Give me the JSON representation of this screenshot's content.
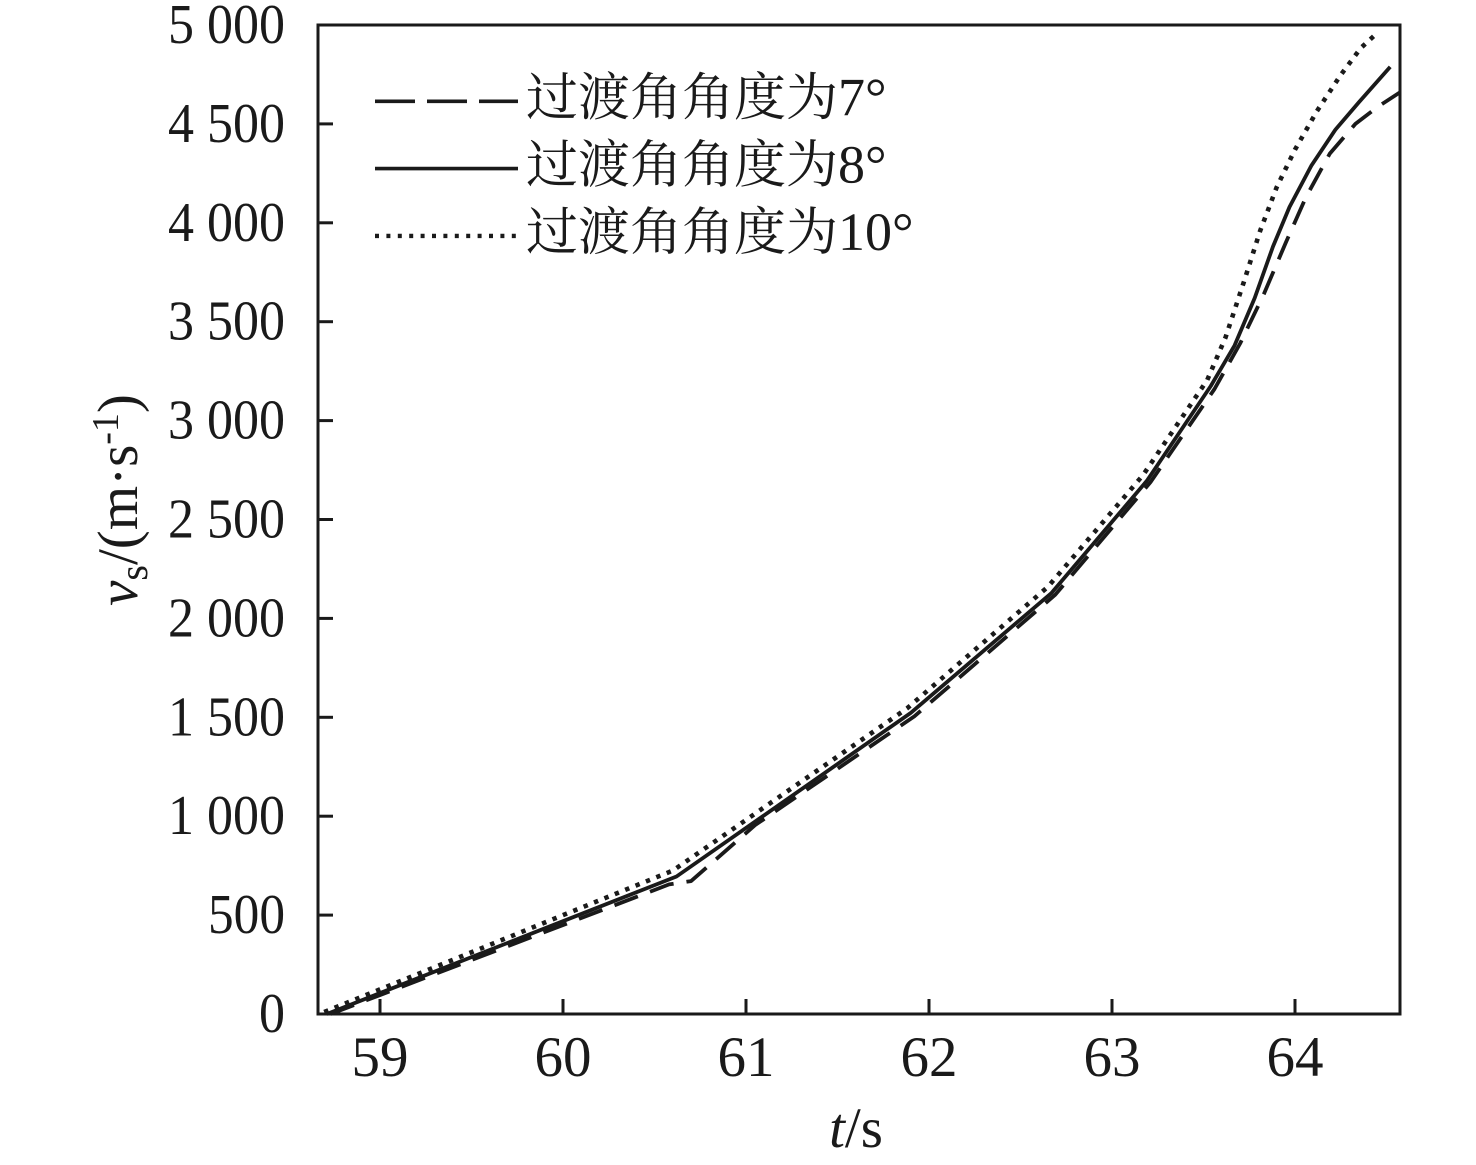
{
  "figure": {
    "background": "#ffffff",
    "ink_color": "#1a1a1a"
  },
  "chart_data": {
    "type": "line",
    "title": "",
    "xlabel_parts": {
      "var": "t",
      "unit": "/s"
    },
    "ylabel_parts": {
      "var": "v",
      "sub": "s",
      "mid": "/(m·s",
      "sup": "-1",
      "tail": ")"
    },
    "xlim": [
      58.6612,
      64.5738
    ],
    "ylim": [
      0,
      5000
    ],
    "xticks": [
      {
        "v": 59,
        "label": "59"
      },
      {
        "v": 60,
        "label": "60"
      },
      {
        "v": 61,
        "label": "61"
      },
      {
        "v": 62,
        "label": "62"
      },
      {
        "v": 63,
        "label": "63"
      },
      {
        "v": 64,
        "label": "64"
      }
    ],
    "yticks": [
      {
        "v": 0,
        "label": "0"
      },
      {
        "v": 500,
        "label": "500"
      },
      {
        "v": 1000,
        "label": "1 000"
      },
      {
        "v": 1500,
        "label": "1 500"
      },
      {
        "v": 2000,
        "label": "2 000"
      },
      {
        "v": 2500,
        "label": "2 500"
      },
      {
        "v": 3000,
        "label": "3 000"
      },
      {
        "v": 3500,
        "label": "3 500"
      },
      {
        "v": 4000,
        "label": "4 000"
      },
      {
        "v": 4500,
        "label": "4 500"
      },
      {
        "v": 5000,
        "label": "5 000"
      }
    ],
    "grid": false,
    "legend_position": "upper-left-inside",
    "series": [
      {
        "id": "deg7",
        "name": "过渡角角度为7°",
        "style": "dashed",
        "points": [
          [
            58.73,
            0
          ],
          [
            60.58,
            655
          ],
          [
            60.7,
            672
          ],
          [
            61.05,
            955
          ],
          [
            61.92,
            1505
          ],
          [
            62.69,
            2120
          ],
          [
            63.21,
            2688
          ],
          [
            63.56,
            3160
          ],
          [
            63.7,
            3390
          ],
          [
            63.83,
            3640
          ],
          [
            63.95,
            3900
          ],
          [
            64.06,
            4130
          ],
          [
            64.19,
            4350
          ],
          [
            64.33,
            4500
          ],
          [
            64.45,
            4585
          ],
          [
            64.574,
            4660
          ]
        ]
      },
      {
        "id": "deg8",
        "name": "过渡角角度为8°",
        "style": "solid",
        "points": [
          [
            58.71,
            0
          ],
          [
            60.62,
            695
          ],
          [
            61.9,
            1522
          ],
          [
            62.67,
            2129
          ],
          [
            63.19,
            2695
          ],
          [
            63.54,
            3175
          ],
          [
            63.67,
            3380
          ],
          [
            63.78,
            3620
          ],
          [
            63.88,
            3880
          ],
          [
            63.97,
            4080
          ],
          [
            64.09,
            4290
          ],
          [
            64.22,
            4470
          ],
          [
            64.35,
            4610
          ],
          [
            64.52,
            4788
          ]
        ]
      },
      {
        "id": "deg10",
        "name": "过渡角角度为10°",
        "style": "dotted",
        "points": [
          [
            58.695,
            10
          ],
          [
            60.6,
            725
          ],
          [
            61.88,
            1545
          ],
          [
            62.65,
            2160
          ],
          [
            63.17,
            2725
          ],
          [
            63.52,
            3205
          ],
          [
            63.62,
            3420
          ],
          [
            63.72,
            3700
          ],
          [
            63.81,
            3960
          ],
          [
            63.9,
            4180
          ],
          [
            64.0,
            4370
          ],
          [
            64.12,
            4565
          ],
          [
            64.25,
            4747
          ],
          [
            64.36,
            4884
          ],
          [
            64.45,
            4960
          ]
        ]
      }
    ]
  },
  "legend": {
    "items": [
      {
        "style": "dashed",
        "label": "过渡角角度为7°"
      },
      {
        "style": "solid",
        "label": "过渡角角度为8°"
      },
      {
        "style": "dotted",
        "label": "过渡角角度为10°"
      }
    ]
  }
}
